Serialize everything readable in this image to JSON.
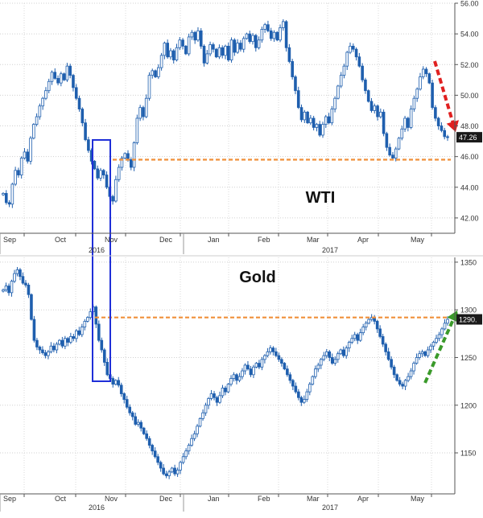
{
  "chart_data": [
    {
      "type": "candlestick",
      "series_name": "WTI",
      "ylim": [
        41,
        56
      ],
      "y_ticks": [
        42,
        44,
        46,
        48,
        50,
        52,
        54,
        56
      ],
      "y_tick_labels": [
        "42.00",
        "44.00",
        "46.00",
        "48.00",
        "50.00",
        "52.00",
        "54.00",
        "56.00"
      ],
      "months": [
        "Sep",
        "Oct",
        "Nov",
        "Dec",
        "Jan",
        "Feb",
        "Mar",
        "Apr",
        "May"
      ],
      "years": [
        "2016",
        "2017"
      ],
      "last_value": 47.26,
      "last_value_label": "47.26",
      "reference_level": 45.8,
      "series_color": "#1f5fae",
      "reference_color": "#f0903a",
      "arrow_color": "#e02020",
      "trend": "down",
      "closes": [
        43.6,
        43.0,
        42.9,
        44.2,
        45.1,
        44.8,
        45.9,
        46.3,
        45.7,
        47.2,
        48.1,
        48.6,
        49.3,
        49.8,
        50.3,
        50.9,
        51.5,
        51.1,
        50.8,
        51.4,
        51.0,
        51.9,
        51.3,
        50.5,
        49.8,
        49.1,
        48.2,
        47.1,
        46.4,
        45.7,
        45.2,
        44.6,
        45.1,
        44.8,
        44.0,
        43.4,
        43.1,
        44.5,
        45.3,
        45.9,
        46.2,
        45.8,
        45.3,
        46.9,
        48.5,
        49.2,
        48.6,
        49.8,
        51.3,
        51.6,
        51.2,
        51.8,
        52.6,
        53.4,
        52.5,
        52.9,
        52.3,
        53.1,
        53.6,
        53.2,
        52.7,
        53.8,
        54.1,
        53.6,
        54.2,
        53.2,
        52.1,
        52.7,
        53.3,
        53.0,
        52.5,
        53.1,
        52.6,
        53.2,
        52.3,
        53.6,
        52.8,
        53.4,
        53.0,
        53.7,
        54.0,
        53.5,
        53.9,
        53.1,
        53.6,
        54.3,
        54.6,
        54.2,
        53.7,
        54.1,
        53.6,
        54.4,
        54.8,
        53.1,
        52.2,
        51.2,
        50.3,
        49.2,
        48.4,
        48.9,
        48.2,
        48.5,
        47.9,
        48.1,
        47.4,
        48.1,
        48.6,
        48.2,
        49.1,
        49.8,
        50.6,
        51.3,
        51.9,
        52.8,
        53.2,
        53.0,
        52.5,
        51.9,
        51.0,
        50.3,
        49.6,
        49.0,
        49.3,
        48.6,
        48.9,
        47.5,
        46.6,
        46.1,
        45.9,
        46.5,
        47.2,
        47.8,
        48.5,
        47.9,
        49.1,
        49.8,
        50.4,
        51.2,
        51.7,
        51.4,
        50.8,
        49.2,
        48.5,
        48.0,
        47.7,
        47.3,
        47.26
      ]
    },
    {
      "type": "candlestick",
      "series_name": "Gold",
      "ylim": [
        1107,
        1355
      ],
      "y_ticks": [
        1150,
        1200,
        1250,
        1300,
        1350
      ],
      "y_tick_labels": [
        "1150",
        "1200",
        "1250",
        "1300",
        "1350"
      ],
      "months": [
        "Sep",
        "Oct",
        "Nov",
        "Dec",
        "Jan",
        "Feb",
        "Mar",
        "Apr",
        "May"
      ],
      "years": [
        "2016",
        "2017"
      ],
      "last_value": 1290,
      "last_value_label": "1290.",
      "reference_level": 1292,
      "series_color": "#1f5fae",
      "reference_color": "#f0903a",
      "arrow_color": "#3a9a2a",
      "trend": "up",
      "closes": [
        1321,
        1325,
        1318,
        1330,
        1338,
        1342,
        1335,
        1328,
        1326,
        1316,
        1290,
        1268,
        1261,
        1258,
        1255,
        1252,
        1256,
        1262,
        1258,
        1264,
        1268,
        1262,
        1270,
        1266,
        1272,
        1270,
        1278,
        1274,
        1282,
        1288,
        1292,
        1298,
        1303,
        1285,
        1268,
        1258,
        1245,
        1232,
        1228,
        1222,
        1226,
        1221,
        1212,
        1206,
        1198,
        1192,
        1188,
        1180,
        1182,
        1176,
        1170,
        1165,
        1158,
        1152,
        1146,
        1140,
        1134,
        1128,
        1126,
        1130,
        1134,
        1128,
        1132,
        1140,
        1146,
        1152,
        1158,
        1165,
        1170,
        1178,
        1186,
        1192,
        1200,
        1207,
        1212,
        1208,
        1203,
        1210,
        1218,
        1214,
        1222,
        1228,
        1232,
        1226,
        1230,
        1236,
        1242,
        1238,
        1232,
        1240,
        1244,
        1240,
        1248,
        1252,
        1256,
        1260,
        1256,
        1252,
        1248,
        1244,
        1238,
        1232,
        1226,
        1220,
        1214,
        1208,
        1203,
        1206,
        1214,
        1222,
        1230,
        1238,
        1242,
        1248,
        1252,
        1256,
        1250,
        1244,
        1248,
        1254,
        1258,
        1252,
        1260,
        1266,
        1270,
        1274,
        1268,
        1276,
        1282,
        1286,
        1290,
        1292,
        1288,
        1280,
        1272,
        1264,
        1256,
        1248,
        1240,
        1232,
        1226,
        1222,
        1220,
        1226,
        1230,
        1236,
        1244,
        1250,
        1254,
        1256,
        1252,
        1258,
        1262,
        1266,
        1270,
        1274,
        1280,
        1286,
        1290
      ]
    }
  ]
}
